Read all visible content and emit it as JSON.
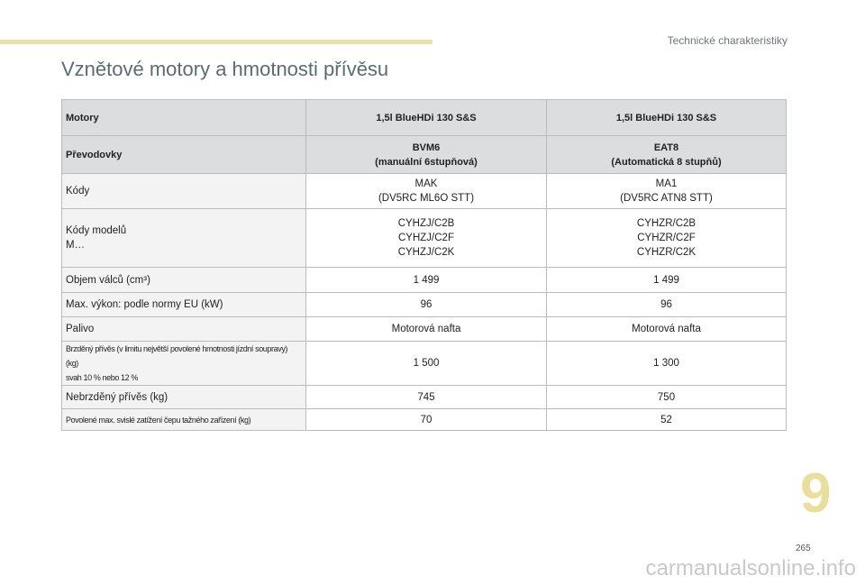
{
  "header": {
    "section": "Technické charakteristiky",
    "title": "Vznětové motory a hmotnosti přívěsu"
  },
  "table": {
    "rows": [
      [
        [
          "Motory"
        ],
        [
          "1,5l BlueHDi 130 S&S"
        ],
        [
          "1,5l BlueHDi 130 S&S"
        ]
      ],
      [
        [
          "Převodovky"
        ],
        [
          "BVM6",
          "(manuální 6stupňová)"
        ],
        [
          "EAT8",
          "(Automatická 8 stupňů)"
        ]
      ],
      [
        [
          "Kódy"
        ],
        [
          "MAK",
          "(DV5RC ML6O STT)"
        ],
        [
          "MA1",
          "(DV5RC ATN8 STT)"
        ]
      ],
      [
        [
          "Kódy modelů",
          "M…"
        ],
        [
          "CYHZJ/C2B",
          "CYHZJ/C2F",
          "CYHZJ/C2K"
        ],
        [
          "CYHZR/C2B",
          "CYHZR/C2F",
          "CYHZR/C2K"
        ]
      ],
      [
        [
          "Objem válců (cm³)"
        ],
        [
          "1 499"
        ],
        [
          "1 499"
        ]
      ],
      [
        [
          "Max. výkon: podle normy EU (kW)"
        ],
        [
          "96"
        ],
        [
          "96"
        ]
      ],
      [
        [
          "Palivo"
        ],
        [
          "Motorová nafta"
        ],
        [
          "Motorová nafta"
        ]
      ],
      [
        [
          "Brzděný přívěs (v limitu největší povolené hmotnosti jízdní soupravy) (kg)",
          "svah 10 % nebo 12 %"
        ],
        [
          "1 500"
        ],
        [
          "1 300"
        ]
      ],
      [
        [
          "Nebrzděný přívěs (kg)"
        ],
        [
          "745"
        ],
        [
          "750"
        ]
      ],
      [
        [
          "Povolené max. svislé zatížení čepu tažného zařízení (kg)"
        ],
        [
          "70"
        ],
        [
          "52"
        ]
      ]
    ]
  },
  "footer": {
    "chapter": "9",
    "page": "265",
    "watermark": "carmanualsonline.info"
  }
}
